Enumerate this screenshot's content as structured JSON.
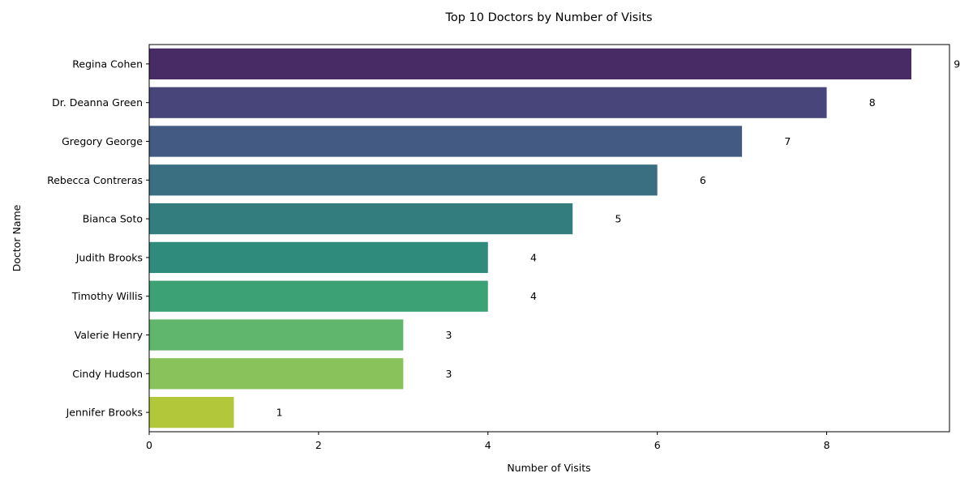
{
  "chart_data": {
    "type": "bar",
    "orientation": "horizontal",
    "title": "Top 10 Doctors by Number of Visits",
    "xlabel": "Number of Visits",
    "ylabel": "Doctor Name",
    "xlim": [
      0,
      9.45
    ],
    "xticks": [
      0,
      2,
      4,
      6,
      8
    ],
    "grid": false,
    "categories": [
      "Regina Cohen",
      "Dr. Deanna Green",
      "Gregory George",
      "Rebecca Contreras",
      "Bianca Soto",
      "Judith Brooks",
      "Timothy Willis",
      "Valerie Henry",
      "Cindy Hudson",
      "Jennifer Brooks"
    ],
    "values": [
      9,
      8,
      7,
      6,
      5,
      4,
      4,
      3,
      3,
      1
    ],
    "colors": [
      "#482A64",
      "#48457B",
      "#435B83",
      "#3A6E81",
      "#337D7E",
      "#2F8B7B",
      "#3CA276",
      "#61B66D",
      "#89C25B",
      "#B2C73A"
    ]
  }
}
